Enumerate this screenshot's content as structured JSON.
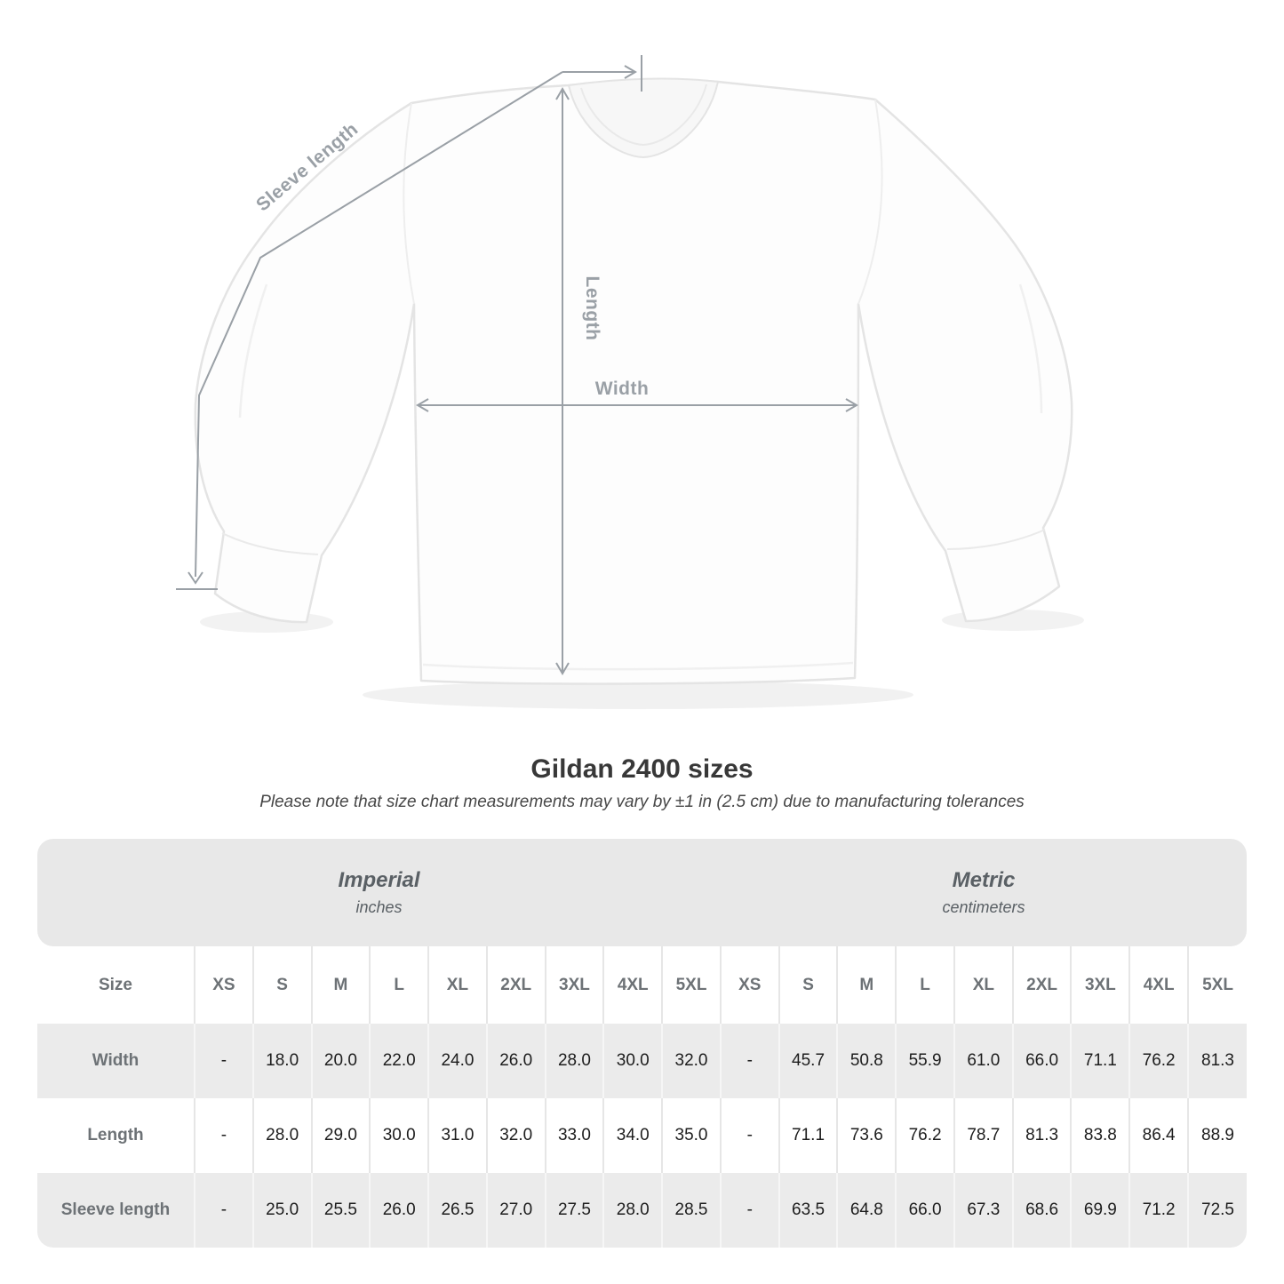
{
  "title": "Gildan 2400 sizes",
  "subtitle": "Please note that size chart measurements may vary by ±1 in (2.5 cm) due to manufacturing tolerances",
  "diagram": {
    "sleeve_length_label": "Sleeve length",
    "length_label": "Length",
    "width_label": "Width"
  },
  "table": {
    "size_col_header": "Size",
    "sizes": [
      "XS",
      "S",
      "M",
      "L",
      "XL",
      "2XL",
      "3XL",
      "4XL",
      "5XL"
    ],
    "groups": [
      {
        "name": "Imperial",
        "unit": "inches"
      },
      {
        "name": "Metric",
        "unit": "centimeters"
      }
    ],
    "rows": [
      {
        "label": "Width",
        "imperial": [
          "-",
          "18.0",
          "20.0",
          "22.0",
          "24.0",
          "26.0",
          "28.0",
          "30.0",
          "32.0"
        ],
        "metric": [
          "-",
          "45.7",
          "50.8",
          "55.9",
          "61.0",
          "66.0",
          "71.1",
          "76.2",
          "81.3"
        ]
      },
      {
        "label": "Length",
        "imperial": [
          "-",
          "28.0",
          "29.0",
          "30.0",
          "31.0",
          "32.0",
          "33.0",
          "34.0",
          "35.0"
        ],
        "metric": [
          "-",
          "71.1",
          "73.6",
          "76.2",
          "78.7",
          "81.3",
          "83.8",
          "86.4",
          "88.9"
        ]
      },
      {
        "label": "Sleeve length",
        "imperial": [
          "-",
          "25.0",
          "25.5",
          "26.0",
          "26.5",
          "27.0",
          "27.5",
          "28.0",
          "28.5"
        ],
        "metric": [
          "-",
          "63.5",
          "64.8",
          "66.0",
          "67.3",
          "68.6",
          "69.9",
          "71.2",
          "72.5"
        ]
      }
    ]
  },
  "colors": {
    "measurement_line": "#9aa0a6",
    "table_band_bg": "#e8e8e8",
    "table_row_gray": "#ebebeb",
    "label_gray": "#6d7276",
    "value_dark": "#1d1d1d"
  }
}
